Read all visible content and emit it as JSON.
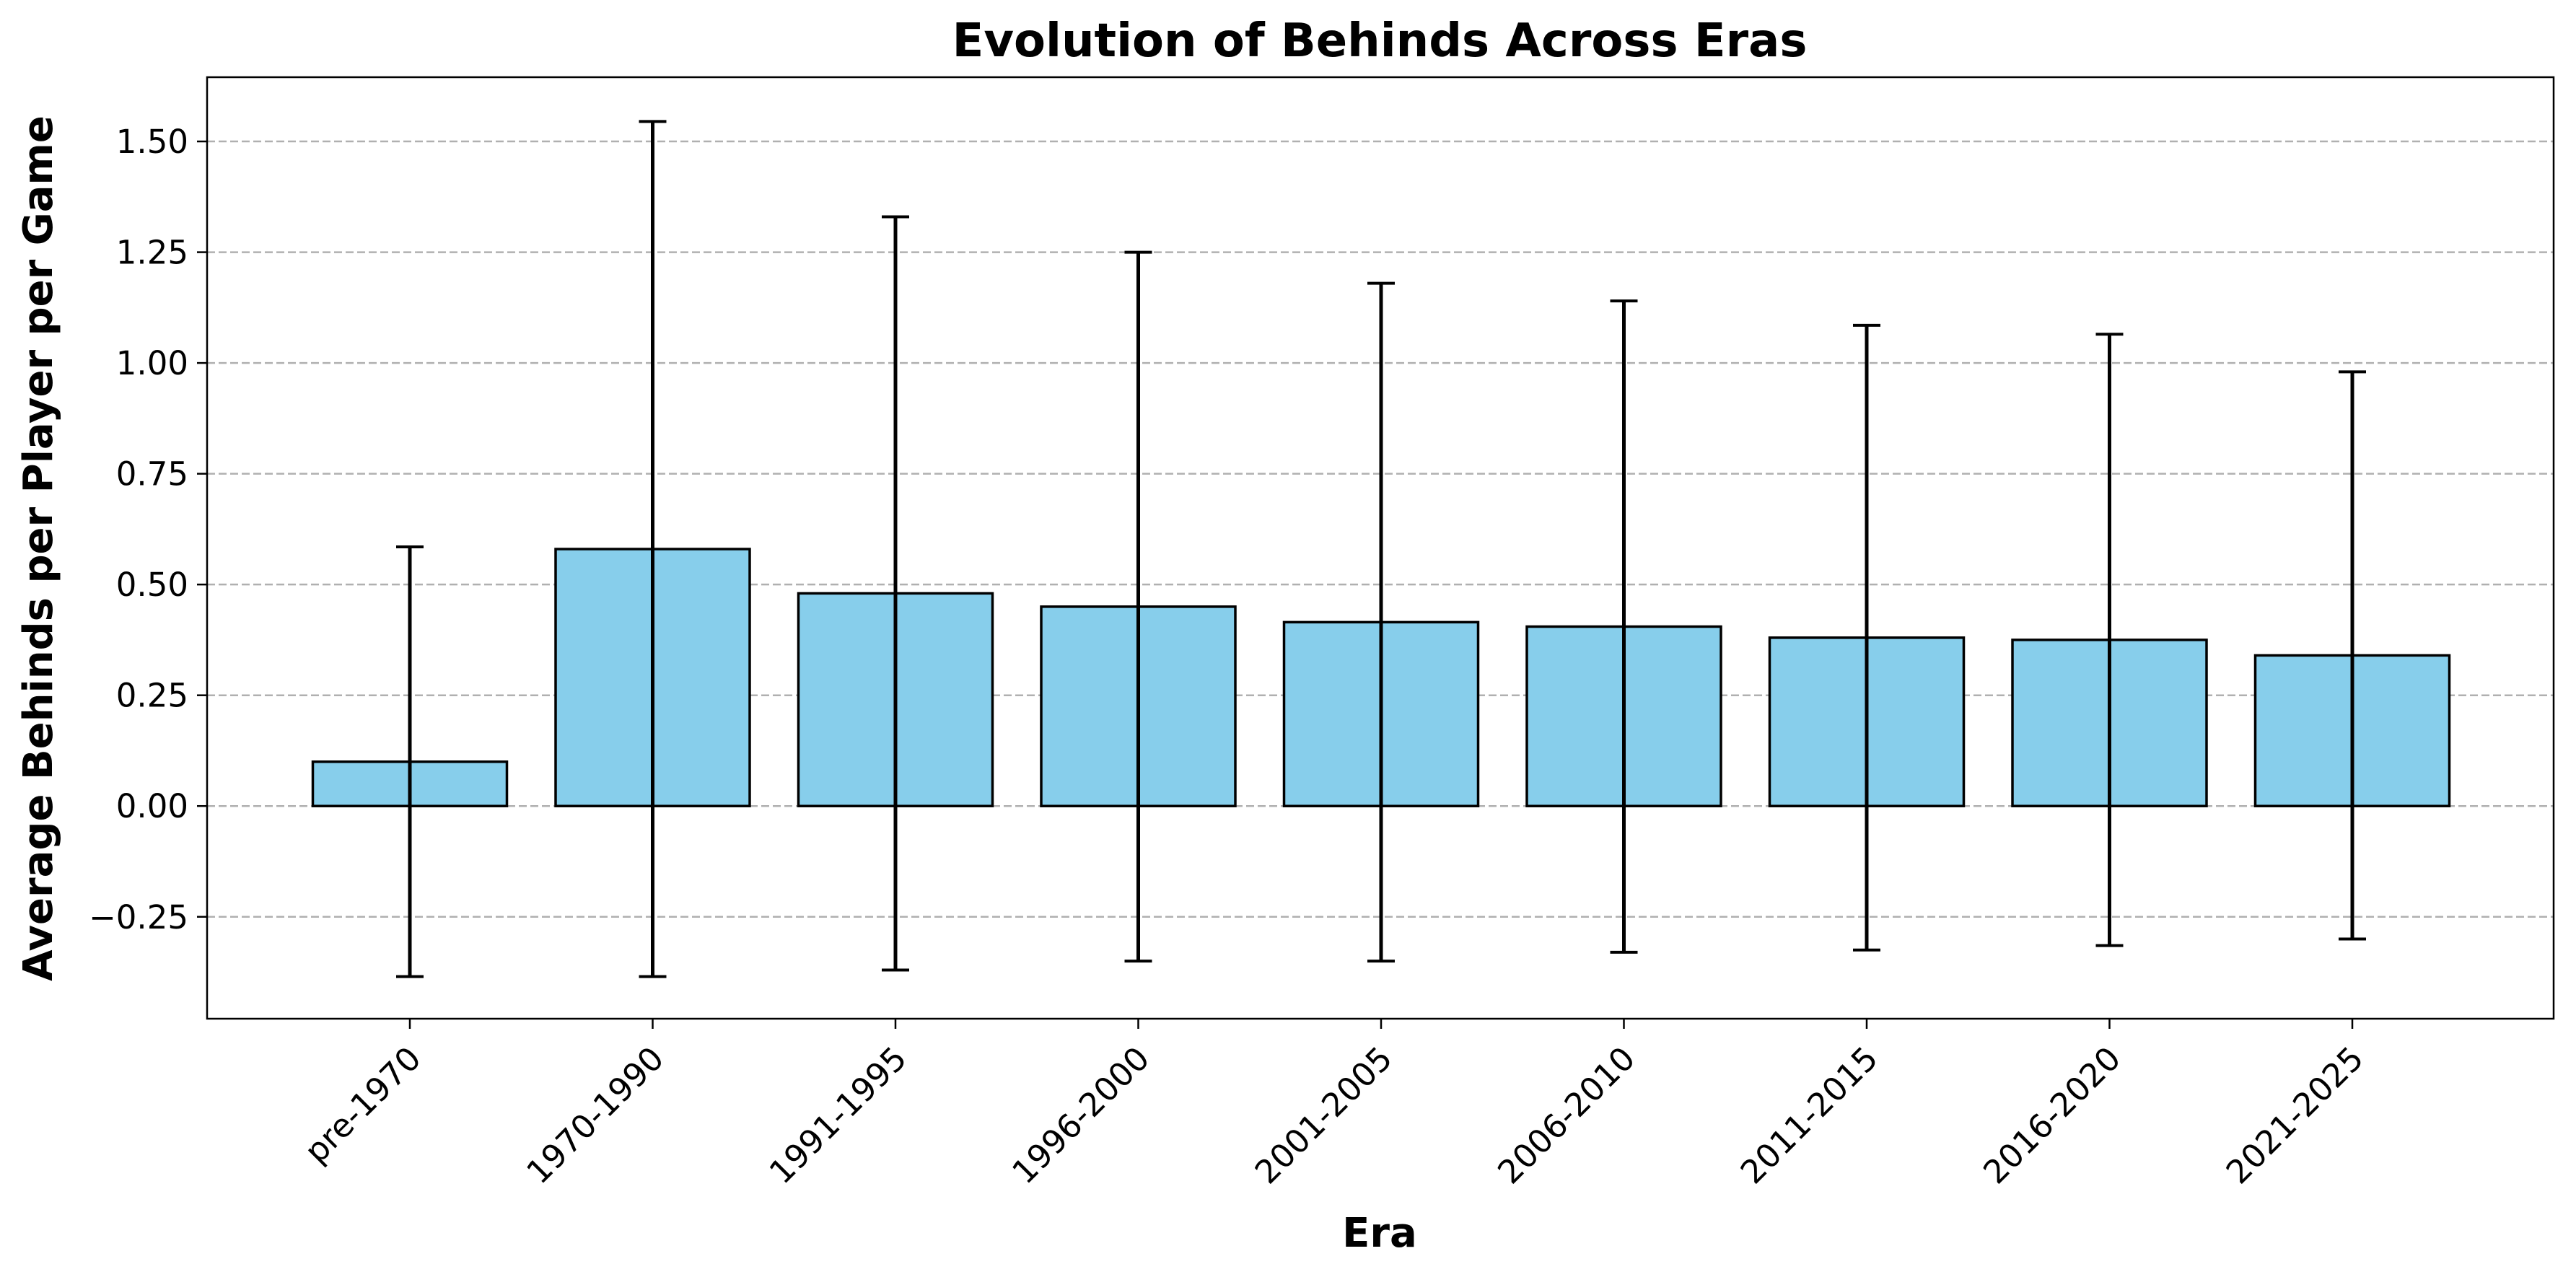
{
  "chart_data": {
    "type": "bar",
    "title": "Evolution of Behinds Across Eras",
    "xlabel": "Era",
    "ylabel": "Average Behinds per Player per Game",
    "categories": [
      "pre-1970",
      "1970-1990",
      "1991-1995",
      "1996-2000",
      "2001-2005",
      "2006-2010",
      "2011-2015",
      "2016-2020",
      "2021-2025"
    ],
    "values": [
      0.1,
      0.58,
      0.48,
      0.45,
      0.415,
      0.405,
      0.38,
      0.375,
      0.34
    ],
    "error": [
      0.485,
      0.965,
      0.85,
      0.8,
      0.765,
      0.735,
      0.705,
      0.69,
      0.64
    ],
    "ylim": [
      -0.48,
      1.645
    ],
    "yticks": [
      "−0.25",
      "0.00",
      "0.25",
      "0.50",
      "0.75",
      "1.00",
      "1.25",
      "1.50"
    ],
    "ytick_values": [
      -0.25,
      0,
      0.25,
      0.5,
      0.75,
      1.0,
      1.25,
      1.5
    ],
    "grid": "y-dashed",
    "legend": "none",
    "colors": {
      "bar_fill": "#87CEEB",
      "bar_edge": "#000000",
      "error_bar": "#000000",
      "grid": "#b0b0b0"
    }
  }
}
